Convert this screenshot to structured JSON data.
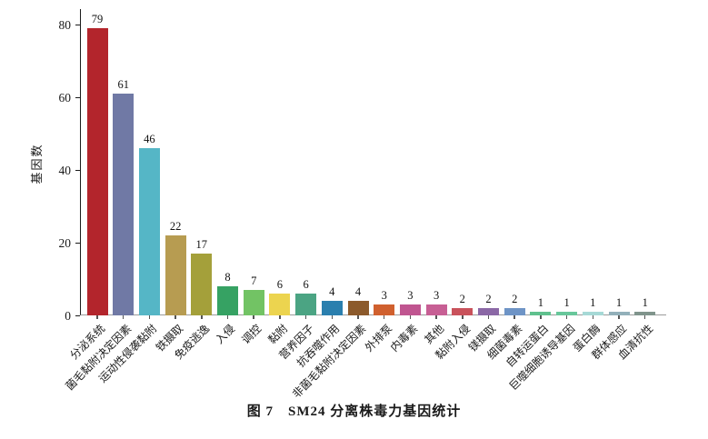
{
  "figure": {
    "caption": "图 7　SM24 分离株毒力基因统计"
  },
  "chart_data": {
    "type": "bar",
    "title": "",
    "xlabel": "",
    "ylabel": "基因数",
    "ylim": [
      0,
      84
    ],
    "yticks": [
      0,
      20,
      40,
      60,
      80
    ],
    "grid": false,
    "legend": "none",
    "value_labels_shown": true,
    "categories": [
      "分泌系统",
      "菌毛黏附决定因素",
      "运动性侵袭黏附",
      "铁摄取",
      "免疫逃逸",
      "入侵",
      "调控",
      "黏附",
      "营养因子",
      "抗吞噬作用",
      "非菌毛黏附决定因素",
      "外排泵",
      "内毒素",
      "其他",
      "黏附入侵",
      "镁摄取",
      "细菌毒素",
      "自转运蛋白",
      "巨噬细胞诱导基因",
      "蛋白酶",
      "群体感应",
      "血清抗性"
    ],
    "values": [
      79,
      61,
      46,
      22,
      17,
      8,
      7,
      6,
      6,
      4,
      4,
      3,
      3,
      3,
      2,
      2,
      2,
      1,
      1,
      1,
      1,
      1
    ],
    "bar_colors": [
      "#b3252c",
      "#7079a5",
      "#55b6c6",
      "#b79c51",
      "#a4a03a",
      "#36a263",
      "#72c364",
      "#ecd44f",
      "#4ba483",
      "#2a7fae",
      "#8c5a2b",
      "#d0602e",
      "#c05590",
      "#c75f94",
      "#c9525b",
      "#8b68a6",
      "#6e94c6",
      "#5fc18e",
      "#68c79b",
      "#a6d9d6",
      "#92b0ba",
      "#80948c"
    ],
    "axis_colors": {
      "y_axis": "#1c1c1c",
      "x_axis": "#9b9b9b"
    }
  }
}
